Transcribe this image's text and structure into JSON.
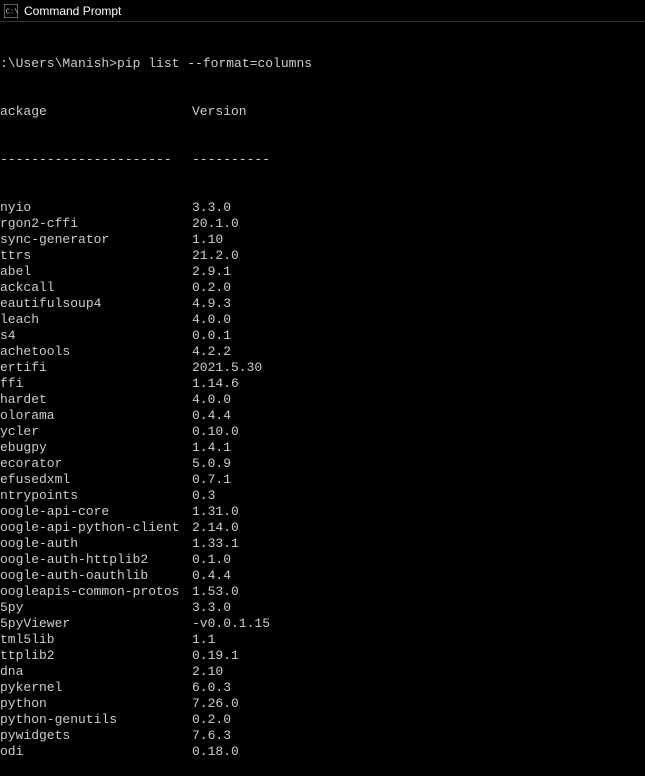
{
  "window": {
    "title": "Command Prompt"
  },
  "prompt": {
    "path": ":\\Users\\Manish>",
    "command": "pip list --format=columns"
  },
  "header": {
    "package_label": "ackage",
    "version_label": "Version"
  },
  "divider": {
    "package_dash": "----------------------",
    "version_dash": "----------"
  },
  "packages": [
    {
      "name": "nyio",
      "version": "3.3.0"
    },
    {
      "name": "rgon2-cffi",
      "version": "20.1.0"
    },
    {
      "name": "sync-generator",
      "version": "1.10"
    },
    {
      "name": "ttrs",
      "version": "21.2.0"
    },
    {
      "name": "abel",
      "version": "2.9.1"
    },
    {
      "name": "ackcall",
      "version": "0.2.0"
    },
    {
      "name": "eautifulsoup4",
      "version": "4.9.3"
    },
    {
      "name": "leach",
      "version": "4.0.0"
    },
    {
      "name": "s4",
      "version": "0.0.1"
    },
    {
      "name": "achetools",
      "version": "4.2.2"
    },
    {
      "name": "ertifi",
      "version": "2021.5.30"
    },
    {
      "name": "ffi",
      "version": "1.14.6"
    },
    {
      "name": "hardet",
      "version": "4.0.0"
    },
    {
      "name": "olorama",
      "version": "0.4.4"
    },
    {
      "name": "ycler",
      "version": "0.10.0"
    },
    {
      "name": "ebugpy",
      "version": "1.4.1"
    },
    {
      "name": "ecorator",
      "version": "5.0.9"
    },
    {
      "name": "efusedxml",
      "version": "0.7.1"
    },
    {
      "name": "ntrypoints",
      "version": "0.3"
    },
    {
      "name": "oogle-api-core",
      "version": "1.31.0"
    },
    {
      "name": "oogle-api-python-client",
      "version": "2.14.0"
    },
    {
      "name": "oogle-auth",
      "version": "1.33.1"
    },
    {
      "name": "oogle-auth-httplib2",
      "version": "0.1.0"
    },
    {
      "name": "oogle-auth-oauthlib",
      "version": "0.4.4"
    },
    {
      "name": "oogleapis-common-protos",
      "version": "1.53.0"
    },
    {
      "name": "5py",
      "version": "3.3.0"
    },
    {
      "name": "5pyViewer",
      "version": "-v0.0.1.15"
    },
    {
      "name": "tml5lib",
      "version": "1.1"
    },
    {
      "name": "ttplib2",
      "version": "0.19.1"
    },
    {
      "name": "dna",
      "version": "2.10"
    },
    {
      "name": "pykernel",
      "version": "6.0.3"
    },
    {
      "name": "python",
      "version": "7.26.0"
    },
    {
      "name": "python-genutils",
      "version": "0.2.0"
    },
    {
      "name": "pywidgets",
      "version": "7.6.3"
    },
    {
      "name": "odi",
      "version": "0.18.0"
    }
  ],
  "colors": {
    "background": "#000000",
    "text": "#cccccc",
    "titlebar_bg": "#000000",
    "titlebar_text": "#ffffff"
  }
}
